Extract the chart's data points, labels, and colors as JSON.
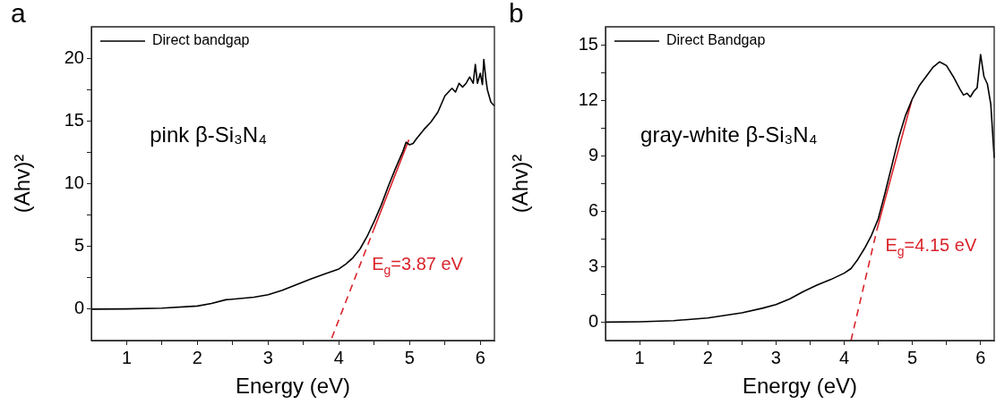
{
  "chart_data": [
    {
      "type": "line",
      "title": "a",
      "xlabel": "Energy (eV)",
      "ylabel": "(Ahv)²",
      "xlim": [
        0.5,
        6.2
      ],
      "ylim": [
        -2.5,
        22.5
      ],
      "xticks": [
        {
          "value": 1,
          "label": "1"
        },
        {
          "value": 1.5,
          "label": null
        },
        {
          "value": 2,
          "label": "2"
        },
        {
          "value": 2.5,
          "label": null
        },
        {
          "value": 3,
          "label": "3"
        },
        {
          "value": 3.5,
          "label": null
        },
        {
          "value": 4,
          "label": "4"
        },
        {
          "value": 4.5,
          "label": null
        },
        {
          "value": 5,
          "label": "5"
        },
        {
          "value": 5.5,
          "label": null
        },
        {
          "value": 6,
          "label": "6"
        }
      ],
      "yticks": [
        {
          "value": 0,
          "label": "0"
        },
        {
          "value": 2.5,
          "label": null
        },
        {
          "value": 5,
          "label": "5"
        },
        {
          "value": 7.5,
          "label": null
        },
        {
          "value": 10,
          "label": "10"
        },
        {
          "value": 12.5,
          "label": null
        },
        {
          "value": 15,
          "label": "15"
        },
        {
          "value": 17.5,
          "label": null
        },
        {
          "value": 20,
          "label": "20"
        }
      ],
      "legend": "top left",
      "marker": "none",
      "grid": false,
      "annotations": [
        "pink β-Si₃N₄",
        "E$_{g}$=3.87 eV"
      ],
      "series": [
        {
          "name": "Direct bandgap",
          "color": "#000000",
          "line_style": "solid",
          "x": [
            0.5,
            1,
            1.5,
            2,
            2.2,
            2.4,
            2.6,
            2.8,
            3,
            3.2,
            3.4,
            3.6,
            3.8,
            4,
            4.1,
            4.2,
            4.3,
            4.4,
            4.5,
            4.6,
            4.7,
            4.8,
            4.9,
            4.95,
            5,
            5.05,
            5.1,
            5.2,
            5.3,
            5.4,
            5.5,
            5.55,
            5.6,
            5.65,
            5.7,
            5.75,
            5.8,
            5.85,
            5.9,
            5.93,
            5.96,
            6,
            6.03,
            6.05,
            6.08,
            6.1,
            6.15,
            6.2
          ],
          "values": [
            0,
            0.02,
            0.08,
            0.25,
            0.45,
            0.75,
            0.85,
            0.95,
            1.15,
            1.5,
            1.95,
            2.4,
            2.8,
            3.2,
            3.6,
            4.1,
            4.8,
            5.8,
            7,
            8.3,
            9.8,
            11.2,
            12.5,
            13.3,
            13.1,
            13.2,
            13.6,
            14.3,
            14.9,
            15.7,
            17,
            17.3,
            17.6,
            17.3,
            18,
            17.7,
            18,
            18.5,
            18,
            19.5,
            18,
            18.8,
            17.9,
            19.9,
            18.3,
            17.5,
            16.5,
            16.2
          ]
        },
        {
          "color": "#d9232a",
          "line_style": "dashed",
          "x": [
            3.9,
            4.49
          ],
          "values": [
            -2.3,
            6.3
          ]
        },
        {
          "color": "#d9232a",
          "line_style": "solid",
          "x": [
            4.49,
            4.99
          ],
          "values": [
            6.3,
            13.5
          ]
        }
      ]
    },
    {
      "type": "line",
      "title": "b",
      "xlabel": "Energy (eV)",
      "ylabel": "(Ahv)²",
      "xlim": [
        0.5,
        6.2
      ],
      "ylim": [
        -1,
        16
      ],
      "xticks": [
        {
          "value": 1,
          "label": "1"
        },
        {
          "value": 1.5,
          "label": null
        },
        {
          "value": 2,
          "label": "2"
        },
        {
          "value": 2.5,
          "label": null
        },
        {
          "value": 3,
          "label": "3"
        },
        {
          "value": 3.5,
          "label": null
        },
        {
          "value": 4,
          "label": "4"
        },
        {
          "value": 4.5,
          "label": null
        },
        {
          "value": 5,
          "label": "5"
        },
        {
          "value": 5.5,
          "label": null
        },
        {
          "value": 6,
          "label": "6"
        }
      ],
      "yticks": [
        {
          "value": 0,
          "label": "0"
        },
        {
          "value": 1.5,
          "label": null
        },
        {
          "value": 3,
          "label": "3"
        },
        {
          "value": 4.5,
          "label": null
        },
        {
          "value": 6,
          "label": "6"
        },
        {
          "value": 7.5,
          "label": null
        },
        {
          "value": 9,
          "label": "9"
        },
        {
          "value": 10.5,
          "label": null
        },
        {
          "value": 12,
          "label": "12"
        },
        {
          "value": 13.5,
          "label": null
        },
        {
          "value": 15,
          "label": "15"
        }
      ],
      "legend": "top left",
      "marker": "none",
      "grid": false,
      "annotations": [
        "gray-white β-Si₃N₄",
        "E$_{g}$=4.15 eV"
      ],
      "series": [
        {
          "name": "Direct Bandgap",
          "color": "#000000",
          "line_style": "solid",
          "x": [
            0.5,
            1,
            1.5,
            2,
            2.5,
            2.8,
            3,
            3.2,
            3.4,
            3.6,
            3.8,
            4,
            4.1,
            4.2,
            4.3,
            4.4,
            4.5,
            4.6,
            4.7,
            4.8,
            4.9,
            5,
            5.1,
            5.2,
            5.3,
            5.4,
            5.45,
            5.5,
            5.6,
            5.7,
            5.75,
            5.8,
            5.85,
            5.9,
            5.95,
            6,
            6.05,
            6.1,
            6.15,
            6.2
          ],
          "values": [
            0,
            0.02,
            0.08,
            0.22,
            0.5,
            0.75,
            0.95,
            1.25,
            1.65,
            2,
            2.3,
            2.65,
            2.9,
            3.4,
            4,
            4.7,
            5.6,
            7,
            8.5,
            10,
            11.2,
            12.1,
            12.8,
            13.3,
            13.8,
            14.1,
            14,
            13.9,
            13.3,
            12.6,
            12.3,
            12.4,
            12.2,
            12.5,
            12.7,
            14.5,
            13.3,
            12.9,
            11.8,
            8.9
          ]
        },
        {
          "color": "#d9232a",
          "line_style": "dashed",
          "x": [
            4.1,
            4.48
          ],
          "values": [
            -1,
            5
          ]
        },
        {
          "color": "#d9232a",
          "line_style": "solid",
          "x": [
            4.48,
            4.99
          ],
          "values": [
            5,
            12
          ]
        }
      ]
    }
  ]
}
